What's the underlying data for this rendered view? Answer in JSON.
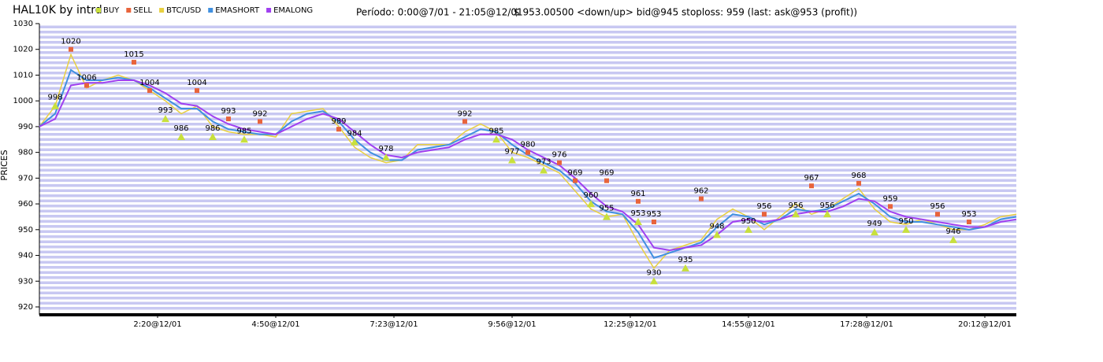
{
  "chart_data": {
    "type": "line",
    "title": "HAL10K by intrd",
    "subtitle": "Período: 0:00@7/01 - 21:05@12/01",
    "annotation": "$ 953.00500 <down/up> bid@945 stoploss: 959 (last: ask@953 (profit))",
    "ylabel": "PRICES",
    "xlim": [
      0,
      124
    ],
    "xticks": [
      {
        "value": 15,
        "label": "2:20@12/01"
      },
      {
        "value": 30,
        "label": "4:50@12/01"
      },
      {
        "value": 45,
        "label": "7:23@12/01"
      },
      {
        "value": 60,
        "label": "9:56@12/01"
      },
      {
        "value": 75,
        "label": "12:25@12/01"
      },
      {
        "value": 90,
        "label": "14:55@12/01"
      },
      {
        "value": 105,
        "label": "17:28@12/01"
      },
      {
        "value": 120,
        "label": "20:12@12/01"
      }
    ],
    "ylim": [
      920,
      1030
    ],
    "yticks": [
      920,
      930,
      940,
      950,
      960,
      970,
      980,
      990,
      1000,
      1010,
      1020,
      1030
    ],
    "x": [
      0,
      2,
      4,
      6,
      8,
      10,
      12,
      14,
      16,
      18,
      20,
      22,
      24,
      26,
      28,
      30,
      32,
      34,
      36,
      38,
      40,
      42,
      44,
      46,
      48,
      50,
      52,
      54,
      56,
      58,
      60,
      62,
      64,
      66,
      68,
      70,
      72,
      74,
      76,
      78,
      80,
      82,
      84,
      86,
      88,
      90,
      92,
      94,
      96,
      98,
      100,
      102,
      104,
      106,
      108,
      110,
      112,
      114,
      116,
      118,
      120,
      122,
      124
    ],
    "markers": [
      {
        "name": "BUY",
        "color": "#c8e03c",
        "shape": "triangle",
        "x": [
          2,
          16,
          18,
          22,
          26,
          40,
          44,
          58,
          60,
          64,
          70,
          72,
          76,
          78,
          82,
          86,
          90,
          96,
          100,
          106,
          110,
          116
        ],
        "values": [
          998,
          993,
          986,
          986,
          985,
          984,
          978,
          985,
          977,
          973,
          960,
          955,
          953,
          930,
          935,
          948,
          950,
          956,
          956,
          949,
          950,
          946
        ]
      },
      {
        "name": "SELL",
        "color": "#e8643c",
        "shape": "square",
        "x": [
          4,
          6,
          12,
          14,
          20,
          24,
          28,
          38,
          54,
          62,
          66,
          68,
          72,
          76,
          78,
          84,
          92,
          98,
          104,
          108,
          114,
          118
        ],
        "values": [
          1020,
          1006,
          1015,
          1004,
          1004,
          993,
          992,
          989,
          992,
          980,
          976,
          969,
          969,
          961,
          953,
          962,
          956,
          967,
          968,
          959,
          956,
          953
        ]
      }
    ],
    "series": [
      {
        "name": "BTC/USD",
        "color": "#e8d040",
        "values": [
          990,
          998,
          1018,
          1005,
          1008,
          1010,
          1008,
          1004,
          1000,
          995,
          998,
          990,
          988,
          987,
          987,
          986,
          995,
          996,
          997,
          990,
          982,
          978,
          976,
          977,
          983,
          983,
          983,
          988,
          991,
          988,
          980,
          978,
          975,
          972,
          965,
          958,
          955,
          956,
          945,
          935,
          942,
          944,
          946,
          954,
          958,
          955,
          950,
          955,
          960,
          956,
          958,
          962,
          966,
          958,
          953,
          952,
          954,
          952,
          950,
          950,
          952,
          955,
          956
        ]
      },
      {
        "name": "EMASHORT",
        "color": "#4090e0",
        "values": [
          990,
          995,
          1012,
          1008,
          1008,
          1009,
          1008,
          1005,
          1001,
          997,
          997,
          992,
          989,
          988,
          987,
          987,
          992,
          995,
          996,
          992,
          985,
          980,
          977,
          977,
          981,
          982,
          983,
          986,
          989,
          988,
          983,
          979,
          976,
          973,
          968,
          961,
          957,
          956,
          949,
          939,
          941,
          943,
          945,
          951,
          956,
          955,
          952,
          954,
          958,
          957,
          958,
          961,
          964,
          960,
          955,
          953,
          953,
          952,
          951,
          950,
          951,
          954,
          955
        ]
      },
      {
        "name": "EMALONG",
        "color": "#a040f0",
        "values": [
          990,
          993,
          1006,
          1007,
          1007,
          1008,
          1008,
          1006,
          1003,
          999,
          998,
          994,
          991,
          989,
          988,
          987,
          990,
          993,
          995,
          993,
          988,
          983,
          979,
          978,
          980,
          981,
          982,
          985,
          987,
          987,
          985,
          981,
          978,
          975,
          970,
          964,
          959,
          957,
          952,
          943,
          942,
          943,
          944,
          948,
          953,
          954,
          953,
          954,
          956,
          957,
          957,
          959,
          962,
          961,
          957,
          955,
          954,
          953,
          952,
          951,
          951,
          953,
          954
        ]
      }
    ]
  }
}
